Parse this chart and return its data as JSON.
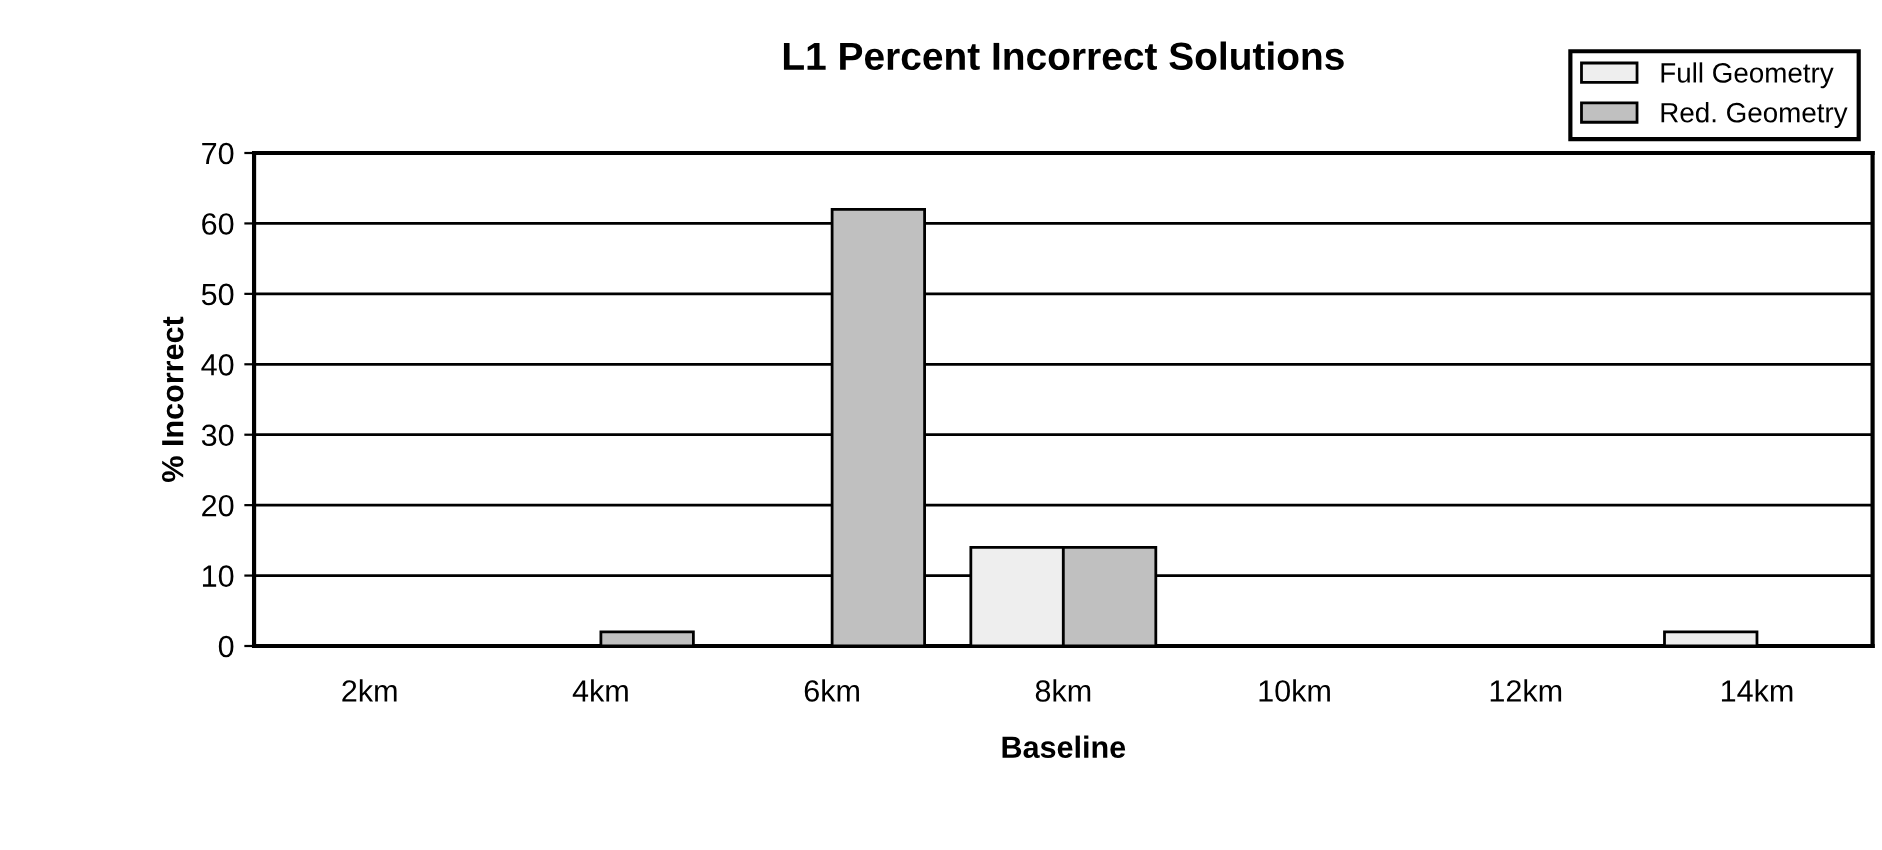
{
  "chart_data": {
    "type": "bar",
    "title": "L1 Percent Incorrect Solutions",
    "xlabel": "Baseline",
    "ylabel": "% Incorrect",
    "categories": [
      "2km",
      "4km",
      "6km",
      "8km",
      "10km",
      "12km",
      "14km"
    ],
    "series": [
      {
        "name": "Full Geometry",
        "color": "#eeeeee",
        "values": [
          0,
          0,
          0,
          14,
          0,
          0,
          2
        ]
      },
      {
        "name": "Red. Geometry",
        "color": "#c0c0c0",
        "values": [
          0,
          2,
          62,
          14,
          0,
          0,
          0
        ]
      }
    ],
    "ylim": [
      0,
      70
    ],
    "yticks": [
      0,
      10,
      20,
      30,
      40,
      50,
      60,
      70
    ],
    "grid": "y",
    "legend": "top right"
  }
}
